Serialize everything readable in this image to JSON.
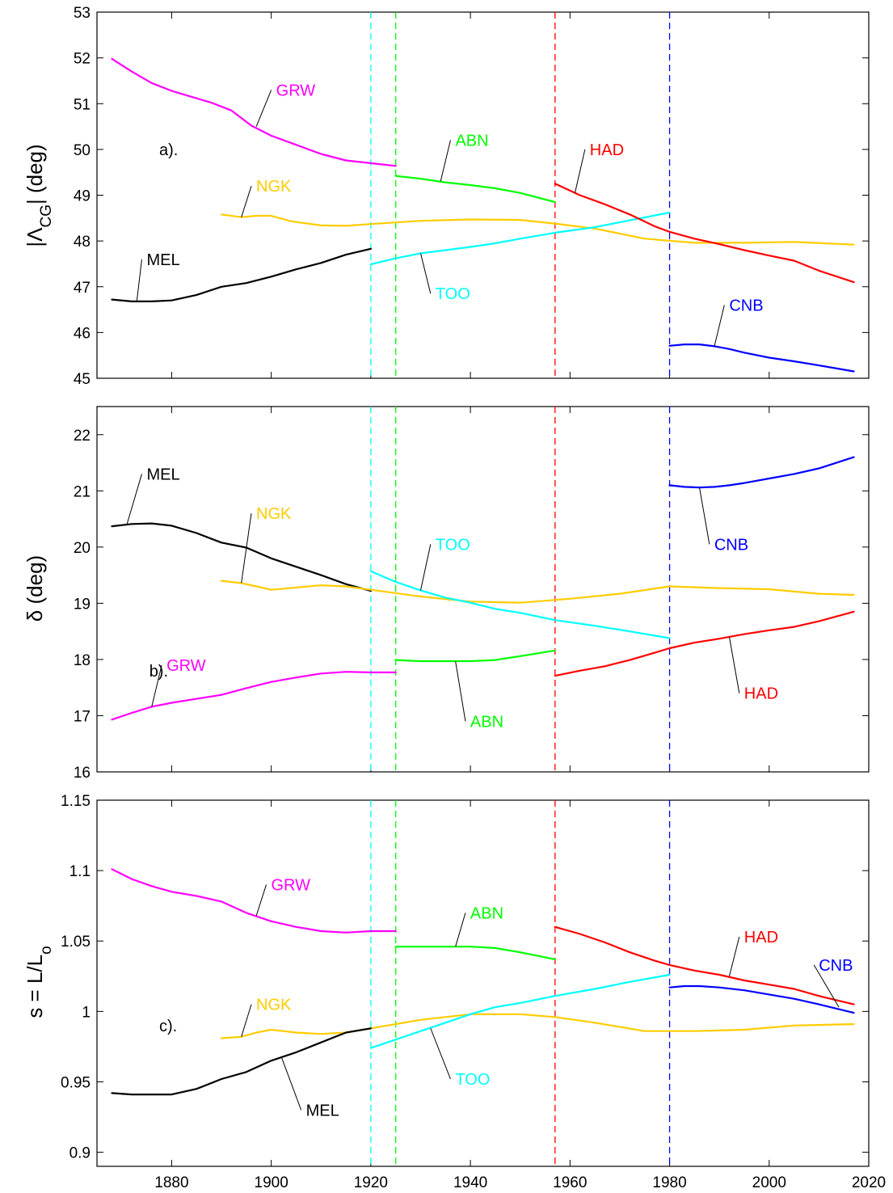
{
  "colors": {
    "GRW": "#ff00ff",
    "NGK": "#ffcc00",
    "MEL": "#000000",
    "TOO": "#00ffff",
    "ABN": "#00ff00",
    "HAD": "#ff0000",
    "CNB": "#0000ff"
  },
  "chart_data": [
    {
      "type": "line",
      "panel_label": "a).",
      "ylabel": "|Λ",
      "ylabel_sub": "CG",
      "ylabel_suffix": "| (deg)",
      "xlim": [
        1865,
        2020
      ],
      "ylim": [
        45,
        53
      ],
      "yticks": [
        45,
        46,
        47,
        48,
        49,
        50,
        51,
        52,
        53
      ],
      "xticks": [
        1880,
        1900,
        1920,
        1940,
        1960,
        1980,
        2000,
        2020
      ],
      "show_xtick_labels": false,
      "vlines": [
        {
          "x": 1920,
          "color": "TOO"
        },
        {
          "x": 1925,
          "color": "ABN"
        },
        {
          "x": 1957,
          "color": "HAD"
        },
        {
          "x": 1980,
          "color": "CNB"
        }
      ],
      "series": [
        {
          "name": "GRW",
          "x": [
            1868,
            1872,
            1876,
            1880,
            1884,
            1888,
            1892,
            1896,
            1900,
            1905,
            1910,
            1915,
            1920,
            1925
          ],
          "y": [
            51.98,
            51.7,
            51.45,
            51.28,
            51.15,
            51.02,
            50.85,
            50.52,
            50.3,
            50.1,
            49.9,
            49.76,
            49.7,
            49.64
          ]
        },
        {
          "name": "NGK",
          "x": [
            1890,
            1894,
            1897,
            1900,
            1904,
            1910,
            1915,
            1920,
            1930,
            1940,
            1950,
            1957,
            1965,
            1975,
            1985,
            1995,
            2005,
            2017
          ],
          "y": [
            48.58,
            48.52,
            48.55,
            48.55,
            48.43,
            48.34,
            48.33,
            48.37,
            48.44,
            48.47,
            48.46,
            48.38,
            48.27,
            48.05,
            47.96,
            47.96,
            47.98,
            47.92
          ]
        },
        {
          "name": "MEL",
          "x": [
            1868,
            1872,
            1876,
            1880,
            1885,
            1890,
            1895,
            1900,
            1905,
            1910,
            1915,
            1920
          ],
          "y": [
            46.72,
            46.68,
            46.68,
            46.7,
            46.82,
            47.0,
            47.08,
            47.22,
            47.38,
            47.52,
            47.7,
            47.83
          ]
        },
        {
          "name": "TOO",
          "x": [
            1920,
            1925,
            1930,
            1935,
            1940,
            1945,
            1950,
            1957,
            1965,
            1972,
            1980
          ],
          "y": [
            47.49,
            47.62,
            47.73,
            47.8,
            47.87,
            47.95,
            48.05,
            48.18,
            48.3,
            48.45,
            48.62
          ]
        },
        {
          "name": "ABN",
          "x": [
            1925,
            1930,
            1935,
            1940,
            1945,
            1950,
            1957
          ],
          "y": [
            49.42,
            49.36,
            49.28,
            49.22,
            49.15,
            49.05,
            48.85
          ]
        },
        {
          "name": "HAD",
          "x": [
            1957,
            1962,
            1967,
            1972,
            1977,
            1980,
            1985,
            1990,
            1995,
            2000,
            2005,
            2010,
            2017
          ],
          "y": [
            49.25,
            49.0,
            48.8,
            48.58,
            48.32,
            48.2,
            48.05,
            47.93,
            47.8,
            47.68,
            47.57,
            47.35,
            47.1
          ]
        },
        {
          "name": "CNB",
          "x": [
            1980,
            1983,
            1986,
            1989,
            1992,
            1995,
            2000,
            2005,
            2010,
            2017
          ],
          "y": [
            45.71,
            45.74,
            45.74,
            45.7,
            45.64,
            45.56,
            45.45,
            45.37,
            45.28,
            45.15
          ]
        }
      ],
      "annotations": [
        {
          "text": "GRW",
          "series": "GRW",
          "tip": [
            1897,
            50.5
          ],
          "label": [
            1900,
            51.3
          ]
        },
        {
          "text": "NGK",
          "series": "NGK",
          "tip": [
            1894,
            48.52
          ],
          "label": [
            1896,
            49.2
          ]
        },
        {
          "text": "MEL",
          "series": "MEL",
          "tip": [
            1873,
            46.68
          ],
          "label": [
            1874,
            47.6
          ]
        },
        {
          "text": "TOO",
          "series": "TOO",
          "tip": [
            1930,
            47.73
          ],
          "label": [
            1932,
            46.85
          ]
        },
        {
          "text": "ABN",
          "series": "ABN",
          "tip": [
            1934,
            49.3
          ],
          "label": [
            1936,
            50.2
          ]
        },
        {
          "text": "HAD",
          "series": "HAD",
          "tip": [
            1961,
            49.05
          ],
          "label": [
            1963,
            50.0
          ]
        },
        {
          "text": "CNB",
          "series": "CNB",
          "tip": [
            1989,
            45.7
          ],
          "label": [
            1991,
            46.6
          ]
        }
      ]
    },
    {
      "type": "line",
      "panel_label": "b).",
      "ylabel": "δ (deg)",
      "xlim": [
        1865,
        2020
      ],
      "ylim": [
        16,
        22.5
      ],
      "yticks": [
        16,
        17,
        18,
        19,
        20,
        21,
        22
      ],
      "xticks": [
        1880,
        1900,
        1920,
        1940,
        1960,
        1980,
        2000,
        2020
      ],
      "show_xtick_labels": false,
      "vlines": [
        {
          "x": 1920,
          "color": "TOO"
        },
        {
          "x": 1925,
          "color": "ABN"
        },
        {
          "x": 1957,
          "color": "HAD"
        },
        {
          "x": 1980,
          "color": "CNB"
        }
      ],
      "series": [
        {
          "name": "MEL",
          "x": [
            1868,
            1872,
            1876,
            1880,
            1885,
            1890,
            1895,
            1900,
            1905,
            1910,
            1915,
            1920
          ],
          "y": [
            20.37,
            20.41,
            20.42,
            20.38,
            20.25,
            20.08,
            19.99,
            19.8,
            19.65,
            19.5,
            19.34,
            19.22
          ]
        },
        {
          "name": "NGK",
          "x": [
            1890,
            1894,
            1897,
            1900,
            1905,
            1910,
            1915,
            1920,
            1930,
            1940,
            1950,
            1960,
            1970,
            1980,
            1990,
            2000,
            2010,
            2017
          ],
          "y": [
            19.4,
            19.36,
            19.3,
            19.24,
            19.28,
            19.32,
            19.3,
            19.24,
            19.12,
            19.03,
            19.01,
            19.08,
            19.17,
            19.3,
            19.27,
            19.25,
            19.17,
            19.15
          ]
        },
        {
          "name": "TOO",
          "x": [
            1920,
            1925,
            1930,
            1935,
            1940,
            1945,
            1950,
            1957,
            1965,
            1972,
            1980
          ],
          "y": [
            19.57,
            19.38,
            19.23,
            19.1,
            19.01,
            18.9,
            18.83,
            18.7,
            18.6,
            18.5,
            18.38
          ]
        },
        {
          "name": "GRW",
          "x": [
            1868,
            1872,
            1876,
            1880,
            1885,
            1890,
            1895,
            1900,
            1905,
            1910,
            1915,
            1920,
            1925
          ],
          "y": [
            16.93,
            17.05,
            17.16,
            17.23,
            17.3,
            17.37,
            17.49,
            17.6,
            17.68,
            17.75,
            17.78,
            17.77,
            17.77
          ]
        },
        {
          "name": "ABN",
          "x": [
            1925,
            1930,
            1935,
            1940,
            1945,
            1950,
            1957
          ],
          "y": [
            17.99,
            17.97,
            17.97,
            17.97,
            17.99,
            18.06,
            18.16
          ]
        },
        {
          "name": "HAD",
          "x": [
            1957,
            1962,
            1967,
            1972,
            1977,
            1980,
            1985,
            1990,
            1995,
            2000,
            2005,
            2010,
            2017
          ],
          "y": [
            17.71,
            17.8,
            17.88,
            17.99,
            18.12,
            18.2,
            18.3,
            18.37,
            18.45,
            18.52,
            18.58,
            18.68,
            18.85
          ]
        },
        {
          "name": "CNB",
          "x": [
            1980,
            1983,
            1986,
            1989,
            1992,
            1995,
            2000,
            2005,
            2010,
            2017
          ],
          "y": [
            21.1,
            21.07,
            21.06,
            21.07,
            21.1,
            21.14,
            21.22,
            21.3,
            21.4,
            21.6
          ]
        }
      ],
      "annotations": [
        {
          "text": "MEL",
          "series": "MEL",
          "tip": [
            1871,
            20.4
          ],
          "label": [
            1874,
            21.3
          ]
        },
        {
          "text": "NGK",
          "series": "NGK",
          "tip": [
            1894,
            19.36
          ],
          "label": [
            1896,
            20.6
          ]
        },
        {
          "text": "TOO",
          "series": "TOO",
          "tip": [
            1930,
            19.23
          ],
          "label": [
            1932,
            20.05
          ]
        },
        {
          "text": "GRW",
          "series": "GRW",
          "tip": [
            1876,
            17.16
          ],
          "label": [
            1878,
            17.9
          ]
        },
        {
          "text": "ABN",
          "series": "ABN",
          "tip": [
            1937,
            17.97
          ],
          "label": [
            1939,
            16.9
          ]
        },
        {
          "text": "HAD",
          "series": "HAD",
          "tip": [
            1992,
            18.4
          ],
          "label": [
            1994,
            17.4
          ]
        },
        {
          "text": "CNB",
          "series": "CNB",
          "tip": [
            1986,
            21.06
          ],
          "label": [
            1988,
            20.05
          ]
        }
      ]
    },
    {
      "type": "line",
      "panel_label": "c).",
      "ylabel": "s = L/L",
      "ylabel_sub": "o",
      "xlim": [
        1865,
        2020
      ],
      "ylim": [
        0.89,
        1.15
      ],
      "yticks": [
        0.9,
        0.95,
        1,
        1.05,
        1.1,
        1.15
      ],
      "ytick_labels": [
        "0.9",
        "0.95",
        "1",
        "1.05",
        "1.1",
        "1.15"
      ],
      "xticks": [
        1880,
        1900,
        1920,
        1940,
        1960,
        1980,
        2000,
        2020
      ],
      "xtick_labels": [
        "1880",
        "1900",
        "1920",
        "1940",
        "1960",
        "1980",
        "2000",
        "2020"
      ],
      "show_xtick_labels": true,
      "vlines": [
        {
          "x": 1920,
          "color": "TOO"
        },
        {
          "x": 1925,
          "color": "ABN"
        },
        {
          "x": 1957,
          "color": "HAD"
        },
        {
          "x": 1980,
          "color": "CNB"
        }
      ],
      "series": [
        {
          "name": "GRW",
          "x": [
            1868,
            1872,
            1876,
            1880,
            1885,
            1890,
            1895,
            1900,
            1905,
            1910,
            1915,
            1920,
            1925
          ],
          "y": [
            1.101,
            1.094,
            1.089,
            1.085,
            1.082,
            1.078,
            1.07,
            1.064,
            1.06,
            1.057,
            1.056,
            1.057,
            1.057
          ]
        },
        {
          "name": "ABN",
          "x": [
            1925,
            1930,
            1935,
            1940,
            1945,
            1950,
            1957
          ],
          "y": [
            1.046,
            1.046,
            1.046,
            1.046,
            1.045,
            1.042,
            1.037
          ]
        },
        {
          "name": "HAD",
          "x": [
            1957,
            1962,
            1967,
            1972,
            1977,
            1980,
            1985,
            1990,
            1995,
            2000,
            2005,
            2010,
            2017
          ],
          "y": [
            1.06,
            1.055,
            1.049,
            1.042,
            1.036,
            1.033,
            1.029,
            1.026,
            1.022,
            1.019,
            1.016,
            1.011,
            1.005
          ]
        },
        {
          "name": "CNB",
          "x": [
            1980,
            1983,
            1986,
            1990,
            1995,
            2000,
            2005,
            2010,
            2017
          ],
          "y": [
            1.017,
            1.018,
            1.018,
            1.017,
            1.015,
            1.012,
            1.009,
            1.005,
            0.999
          ]
        },
        {
          "name": "NGK",
          "x": [
            1890,
            1894,
            1897,
            1900,
            1905,
            1910,
            1915,
            1920,
            1930,
            1940,
            1950,
            1957,
            1965,
            1975,
            1985,
            1995,
            2005,
            2017
          ],
          "y": [
            0.981,
            0.982,
            0.985,
            0.987,
            0.985,
            0.984,
            0.985,
            0.988,
            0.994,
            0.998,
            0.998,
            0.996,
            0.992,
            0.986,
            0.986,
            0.987,
            0.99,
            0.991
          ]
        },
        {
          "name": "MEL",
          "x": [
            1868,
            1872,
            1876,
            1880,
            1885,
            1890,
            1895,
            1900,
            1905,
            1910,
            1915,
            1920
          ],
          "y": [
            0.942,
            0.941,
            0.941,
            0.941,
            0.945,
            0.952,
            0.957,
            0.965,
            0.971,
            0.978,
            0.985,
            0.988
          ]
        },
        {
          "name": "TOO",
          "x": [
            1920,
            1925,
            1930,
            1935,
            1940,
            1945,
            1950,
            1957,
            1965,
            1972,
            1980
          ],
          "y": [
            0.974,
            0.98,
            0.986,
            0.992,
            0.998,
            1.003,
            1.006,
            1.011,
            1.016,
            1.021,
            1.026
          ]
        }
      ],
      "annotations": [
        {
          "text": "GRW",
          "series": "GRW",
          "tip": [
            1897,
            1.068
          ],
          "label": [
            1899,
            1.09
          ]
        },
        {
          "text": "ABN",
          "series": "ABN",
          "tip": [
            1937,
            1.046
          ],
          "label": [
            1939,
            1.07
          ]
        },
        {
          "text": "HAD",
          "series": "HAD",
          "tip": [
            1992,
            1.025
          ],
          "label": [
            1994,
            1.053
          ]
        },
        {
          "text": "CNB",
          "series": "CNB",
          "tip": [
            2014,
            1.003
          ],
          "label": [
            2009,
            1.033
          ]
        },
        {
          "text": "NGK",
          "series": "NGK",
          "tip": [
            1894,
            0.982
          ],
          "label": [
            1896,
            1.005
          ]
        },
        {
          "text": "MEL",
          "series": "MEL",
          "tip": [
            1902,
            0.968
          ],
          "label": [
            1906,
            0.93
          ]
        },
        {
          "text": "TOO",
          "series": "TOO",
          "tip": [
            1932,
            0.988
          ],
          "label": [
            1936,
            0.952
          ]
        }
      ]
    }
  ]
}
